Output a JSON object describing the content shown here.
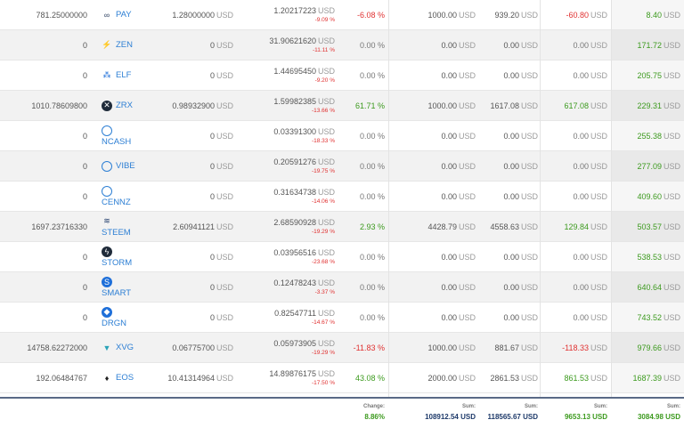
{
  "currency": "USD",
  "rows": [
    {
      "amount": "781.25000000",
      "coin": "PAY",
      "icon": "pay-icon",
      "price": "1.28000000",
      "current": "1.20217223",
      "cur_change": "-9.09 %",
      "change": "-6.08 %",
      "change_sign": "neg",
      "invest": "1000.00",
      "value": "939.20",
      "profit": "-60.80",
      "profit_sign": "neg",
      "total": "8.40"
    },
    {
      "amount": "0",
      "coin": "ZEN",
      "icon": "zen-icon",
      "price": "0",
      "current": "31.90621620",
      "cur_change": "-11.11 %",
      "change": "0.00 %",
      "change_sign": "zero",
      "invest": "0.00",
      "value": "0.00",
      "profit": "0.00",
      "profit_sign": "zero",
      "total": "171.72"
    },
    {
      "amount": "0",
      "coin": "ELF",
      "icon": "elf-icon",
      "price": "0",
      "current": "1.44695450",
      "cur_change": "-9.20 %",
      "change": "0.00 %",
      "change_sign": "zero",
      "invest": "0.00",
      "value": "0.00",
      "profit": "0.00",
      "profit_sign": "zero",
      "total": "205.75"
    },
    {
      "amount": "1010.78609800",
      "coin": "ZRX",
      "icon": "zrx-icon",
      "price": "0.98932900",
      "current": "1.59982385",
      "cur_change": "-13.66 %",
      "change": "61.71 %",
      "change_sign": "pos",
      "invest": "1000.00",
      "value": "1617.08",
      "profit": "617.08",
      "profit_sign": "pos",
      "total": "229.31"
    },
    {
      "amount": "0",
      "coin": "NCASH",
      "icon": "ncash-icon",
      "price": "0",
      "current": "0.03391300",
      "cur_change": "-18.33 %",
      "change": "0.00 %",
      "change_sign": "zero",
      "invest": "0.00",
      "value": "0.00",
      "profit": "0.00",
      "profit_sign": "zero",
      "total": "255.38"
    },
    {
      "amount": "0",
      "coin": "VIBE",
      "icon": "vibe-icon",
      "price": "0",
      "current": "0.20591276",
      "cur_change": "-19.75 %",
      "change": "0.00 %",
      "change_sign": "zero",
      "invest": "0.00",
      "value": "0.00",
      "profit": "0.00",
      "profit_sign": "zero",
      "total": "277.09"
    },
    {
      "amount": "0",
      "coin": "CENNZ",
      "icon": "cennz-icon",
      "price": "0",
      "current": "0.31634738",
      "cur_change": "-14.06 %",
      "change": "0.00 %",
      "change_sign": "zero",
      "invest": "0.00",
      "value": "0.00",
      "profit": "0.00",
      "profit_sign": "zero",
      "total": "409.60"
    },
    {
      "amount": "1697.23716330",
      "coin": "STEEM",
      "icon": "steem-icon",
      "price": "2.60941121",
      "current": "2.68590928",
      "cur_change": "-19.29 %",
      "change": "2.93 %",
      "change_sign": "pos",
      "invest": "4428.79",
      "value": "4558.63",
      "profit": "129.84",
      "profit_sign": "pos",
      "total": "503.57"
    },
    {
      "amount": "0",
      "coin": "STORM",
      "icon": "storm-icon",
      "price": "0",
      "current": "0.03956516",
      "cur_change": "-23.68 %",
      "change": "0.00 %",
      "change_sign": "zero",
      "invest": "0.00",
      "value": "0.00",
      "profit": "0.00",
      "profit_sign": "zero",
      "total": "538.53"
    },
    {
      "amount": "0",
      "coin": "SMART",
      "icon": "smart-icon",
      "price": "0",
      "current": "0.12478243",
      "cur_change": "-3.37 %",
      "change": "0.00 %",
      "change_sign": "zero",
      "invest": "0.00",
      "value": "0.00",
      "profit": "0.00",
      "profit_sign": "zero",
      "total": "640.64"
    },
    {
      "amount": "0",
      "coin": "DRGN",
      "icon": "drgn-icon",
      "price": "0",
      "current": "0.82547711",
      "cur_change": "-14.67 %",
      "change": "0.00 %",
      "change_sign": "zero",
      "invest": "0.00",
      "value": "0.00",
      "profit": "0.00",
      "profit_sign": "zero",
      "total": "743.52"
    },
    {
      "amount": "14758.62272000",
      "coin": "XVG",
      "icon": "xvg-icon",
      "price": "0.06775700",
      "current": "0.05973905",
      "cur_change": "-19.29 %",
      "change": "-11.83 %",
      "change_sign": "neg",
      "invest": "1000.00",
      "value": "881.67",
      "profit": "-118.33",
      "profit_sign": "neg",
      "total": "979.66"
    },
    {
      "amount": "192.06484767",
      "coin": "EOS",
      "icon": "eos-icon",
      "price": "10.41314964",
      "current": "14.89876175",
      "cur_change": "-17.50 %",
      "change": "43.08 %",
      "change_sign": "pos",
      "invest": "2000.00",
      "value": "2861.53",
      "profit": "861.53",
      "profit_sign": "pos",
      "total": "1687.39"
    }
  ],
  "footer": {
    "change_label": "Change:",
    "change_value": "8.86%",
    "sum_label": "Sum:",
    "invest_sum": "108912.54 USD",
    "value_sum": "118565.67 USD",
    "profit_sum": "9653.13 USD",
    "total_sum": "3084.98 USD"
  }
}
